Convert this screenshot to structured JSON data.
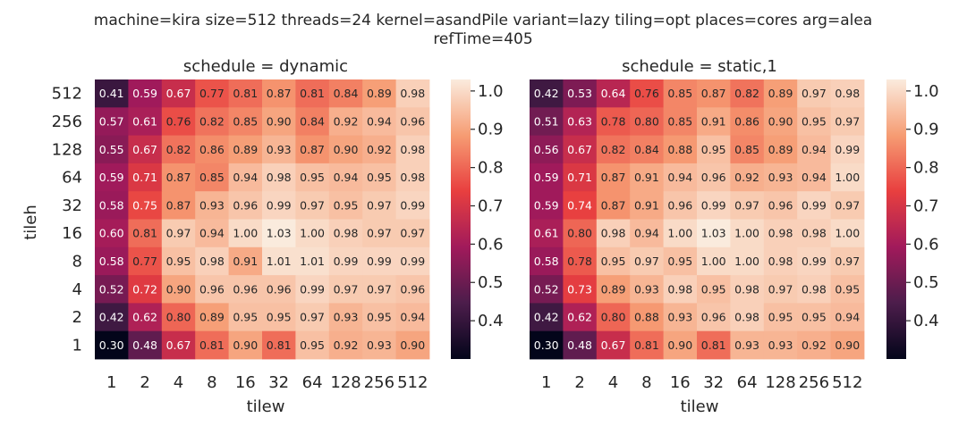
{
  "figure": {
    "title_line1": "machine=kira size=512 threads=24 kernel=asandPile variant=lazy tiling=opt places=cores arg=alea",
    "title_line2": "refTime=405"
  },
  "colormap": {
    "name": "rocket",
    "stops": [
      "#03051a",
      "#4c1d4b",
      "#a11a5b",
      "#e83f3f",
      "#f69c73",
      "#faebdd"
    ]
  },
  "chart_data": [
    {
      "type": "heatmap",
      "title": "schedule = dynamic",
      "xlabel": "tilew",
      "ylabel": "tileh",
      "x_categories": [
        "1",
        "2",
        "4",
        "8",
        "16",
        "32",
        "64",
        "128",
        "256",
        "512"
      ],
      "y_categories": [
        "512",
        "256",
        "128",
        "64",
        "32",
        "16",
        "8",
        "4",
        "2",
        "1"
      ],
      "values": [
        [
          0.41,
          0.59,
          0.67,
          0.77,
          0.81,
          0.87,
          0.81,
          0.84,
          0.89,
          0.98
        ],
        [
          0.57,
          0.61,
          0.76,
          0.82,
          0.85,
          0.9,
          0.84,
          0.92,
          0.94,
          0.96
        ],
        [
          0.55,
          0.67,
          0.82,
          0.86,
          0.89,
          0.93,
          0.87,
          0.9,
          0.92,
          0.98
        ],
        [
          0.59,
          0.71,
          0.87,
          0.85,
          0.94,
          0.98,
          0.95,
          0.94,
          0.95,
          0.98
        ],
        [
          0.58,
          0.75,
          0.87,
          0.93,
          0.96,
          0.99,
          0.97,
          0.95,
          0.97,
          0.99
        ],
        [
          0.6,
          0.81,
          0.97,
          0.94,
          1.0,
          1.03,
          1.0,
          0.98,
          0.97,
          0.97
        ],
        [
          0.58,
          0.77,
          0.95,
          0.98,
          0.91,
          1.01,
          1.01,
          0.99,
          0.99,
          0.99
        ],
        [
          0.52,
          0.72,
          0.9,
          0.96,
          0.96,
          0.96,
          0.99,
          0.97,
          0.97,
          0.96
        ],
        [
          0.42,
          0.62,
          0.8,
          0.89,
          0.95,
          0.95,
          0.97,
          0.93,
          0.95,
          0.94
        ],
        [
          0.3,
          0.48,
          0.67,
          0.81,
          0.9,
          0.81,
          0.95,
          0.92,
          0.93,
          0.9
        ]
      ],
      "color_range": [
        0.3,
        1.03
      ],
      "colorbar_ticks": [
        "0.4",
        "0.5",
        "0.6",
        "0.7",
        "0.8",
        "0.9",
        "1.0"
      ],
      "grid": false
    },
    {
      "type": "heatmap",
      "title": "schedule = static,1",
      "xlabel": "tilew",
      "ylabel": "",
      "x_categories": [
        "1",
        "2",
        "4",
        "8",
        "16",
        "32",
        "64",
        "128",
        "256",
        "512"
      ],
      "y_categories": [],
      "values": [
        [
          0.42,
          0.53,
          0.64,
          0.76,
          0.85,
          0.87,
          0.82,
          0.89,
          0.97,
          0.98
        ],
        [
          0.51,
          0.63,
          0.78,
          0.8,
          0.85,
          0.91,
          0.86,
          0.9,
          0.95,
          0.97
        ],
        [
          0.56,
          0.67,
          0.82,
          0.84,
          0.88,
          0.95,
          0.85,
          0.89,
          0.94,
          0.99
        ],
        [
          0.59,
          0.71,
          0.87,
          0.91,
          0.94,
          0.96,
          0.92,
          0.93,
          0.94,
          1.0
        ],
        [
          0.59,
          0.74,
          0.87,
          0.91,
          0.96,
          0.99,
          0.97,
          0.96,
          0.99,
          0.97
        ],
        [
          0.61,
          0.8,
          0.98,
          0.94,
          1.0,
          1.03,
          1.0,
          0.98,
          0.98,
          1.0
        ],
        [
          0.58,
          0.78,
          0.95,
          0.97,
          0.95,
          1.0,
          1.0,
          0.98,
          0.99,
          0.97
        ],
        [
          0.52,
          0.73,
          0.89,
          0.93,
          0.98,
          0.95,
          0.98,
          0.97,
          0.98,
          0.95
        ],
        [
          0.42,
          0.62,
          0.8,
          0.88,
          0.93,
          0.96,
          0.98,
          0.95,
          0.95,
          0.94
        ],
        [
          0.3,
          0.48,
          0.67,
          0.81,
          0.9,
          0.81,
          0.93,
          0.93,
          0.92,
          0.9
        ]
      ],
      "color_range": [
        0.3,
        1.03
      ],
      "colorbar_ticks": [
        "0.4",
        "0.5",
        "0.6",
        "0.7",
        "0.8",
        "0.9",
        "1.0"
      ],
      "grid": false
    }
  ]
}
